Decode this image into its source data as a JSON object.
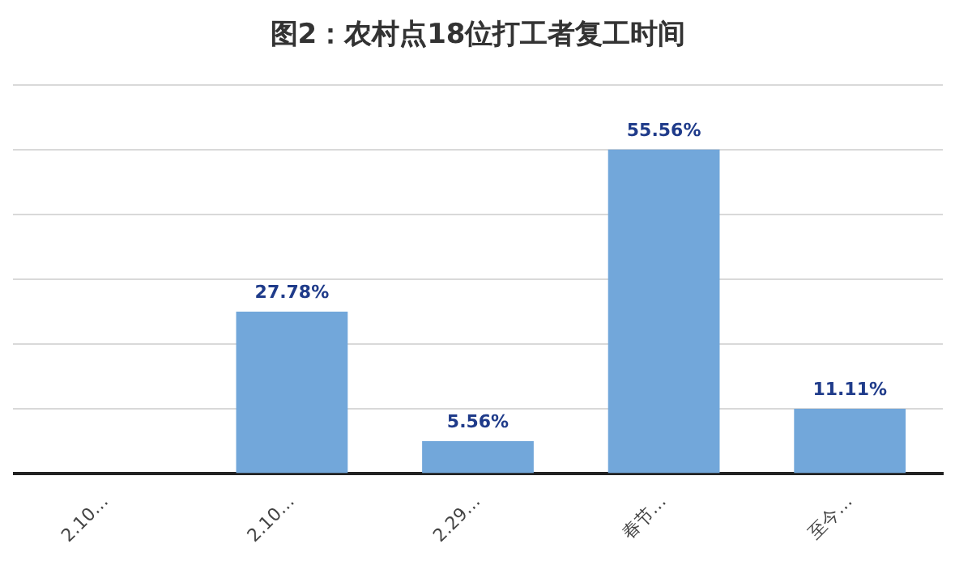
{
  "chart_data": {
    "type": "bar",
    "title": "图2：农村点18位打工者复工时间",
    "categories": [
      "2.10…",
      "2.10…",
      "2.29…",
      "春节…",
      "至今…"
    ],
    "values": [
      0,
      27.78,
      5.56,
      55.56,
      11.11
    ],
    "value_labels": [
      null,
      "27.78%",
      "5.56%",
      "55.56%",
      "11.11%"
    ],
    "color": "#72a7da",
    "ylim": [
      0,
      66.67
    ],
    "yticks": [
      {
        "value": 0,
        "label": null
      },
      {
        "value": 11.11,
        "label": null
      },
      {
        "value": 22.22,
        "label": null
      },
      {
        "value": 33.33,
        "label": null
      },
      {
        "value": 44.44,
        "label": null
      },
      {
        "value": 55.56,
        "label": null
      },
      {
        "value": 66.67,
        "label": null
      }
    ],
    "grid": true,
    "legend": false,
    "tick_labels": "x"
  }
}
